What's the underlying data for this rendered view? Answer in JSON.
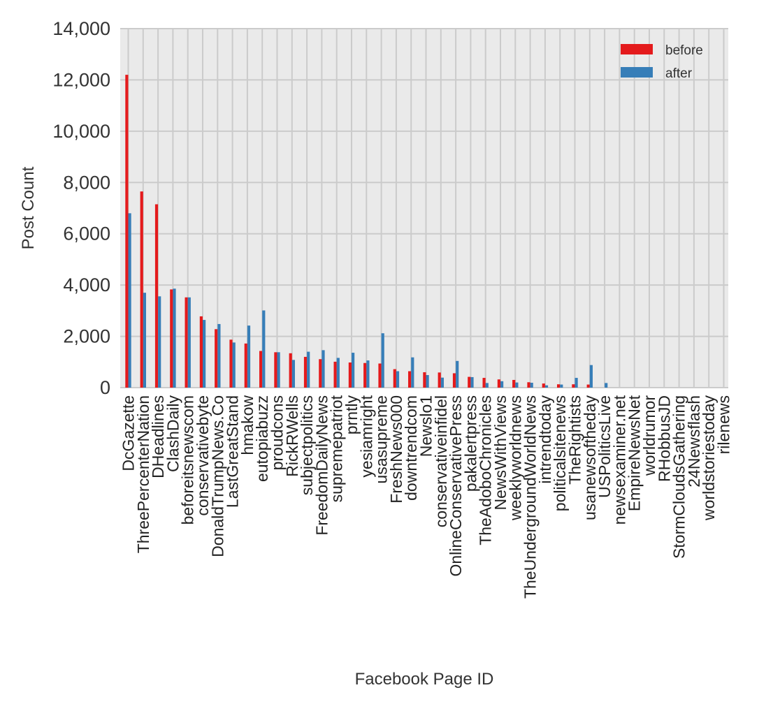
{
  "chart_data": {
    "type": "bar",
    "title": "",
    "xlabel": "Facebook Page ID",
    "ylabel": "Post Count",
    "ylim": [
      0,
      14000
    ],
    "yticks": [
      0,
      2000,
      4000,
      6000,
      8000,
      10000,
      12000,
      14000
    ],
    "ytick_labels": [
      "0",
      "2,000",
      "4,000",
      "6,000",
      "8,000",
      "10,000",
      "12,000",
      "14,000"
    ],
    "grid": true,
    "legend_position": "top-right",
    "categories": [
      "DcGazette",
      "ThreePercenterNation",
      "DHeadlines",
      "ClashDaily",
      "beforeitsnewscom",
      "conservativebyte",
      "DonaldTrumpNews.Co",
      "LastGreatStand",
      "hmakow",
      "eutopiabuzz",
      "proudcons",
      "RickRWells",
      "subjectpolitics",
      "FreedomDailyNews",
      "supremepatriot",
      "prntly",
      "yesiamright",
      "usasupreme",
      "FreshNews000",
      "downtrendcom",
      "Newslo1",
      "conservativeinfidel",
      "OnlineConservativePress",
      "pakalertpress",
      "TheAdoboChronicles",
      "NewsWithViews",
      "weeklyworldnews",
      "TheUndergroundWorldNews",
      "intrendtoday",
      "politicalsitenews",
      "TheRightists",
      "usanewsoftheday",
      "USPoliticsLive",
      "newsexaminer.net",
      "EmpireNewsNet",
      "worldrumor",
      "RHobbusJD",
      "StormCloudsGathering",
      "24Newsflash",
      "worldstoriestoday",
      "rilenews"
    ],
    "series": [
      {
        "name": "before",
        "color": "#e41a1c",
        "values": [
          12200,
          7650,
          7150,
          3830,
          3520,
          2780,
          2280,
          1870,
          1720,
          1430,
          1380,
          1340,
          1200,
          1110,
          1010,
          980,
          960,
          940,
          720,
          640,
          600,
          590,
          560,
          420,
          380,
          320,
          300,
          210,
          160,
          130,
          130,
          120,
          0,
          0,
          0,
          0,
          0,
          0,
          0,
          0,
          0
        ]
      },
      {
        "name": "after",
        "color": "#377eb8",
        "values": [
          6800,
          3700,
          3560,
          3860,
          3520,
          2640,
          2480,
          1760,
          2420,
          3010,
          1380,
          1080,
          1400,
          1460,
          1160,
          1360,
          1060,
          2120,
          640,
          1180,
          490,
          390,
          1040,
          410,
          180,
          250,
          200,
          190,
          90,
          120,
          380,
          880,
          180,
          0,
          0,
          0,
          0,
          0,
          0,
          0,
          0
        ]
      }
    ]
  }
}
